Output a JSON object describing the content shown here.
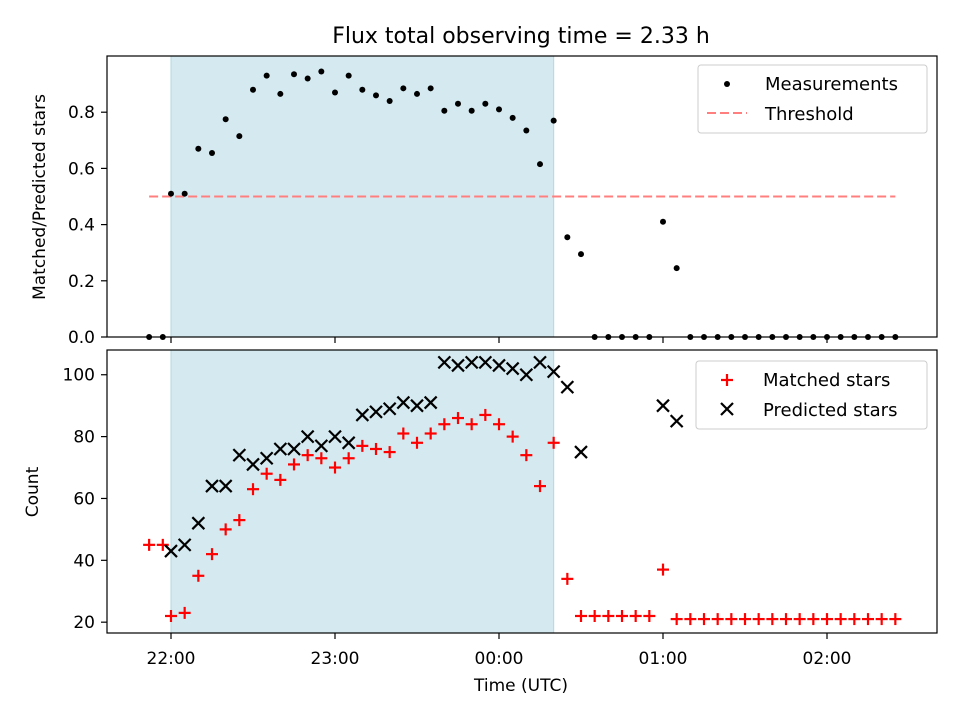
{
  "chart_data": [
    {
      "type": "scatter",
      "title": "Flux total observing time = 2.33 h",
      "xlabel": "",
      "ylabel": "Matched/Predicted stars",
      "ylim": [
        0,
        1.0
      ],
      "yticks": [
        0.0,
        0.2,
        0.4,
        0.6,
        0.8
      ],
      "ytick_labels": [
        "0.0",
        "0.2",
        "0.4",
        "0.6",
        "0.8"
      ],
      "xlim": [
        "21:46",
        "02:41"
      ],
      "grid": false,
      "legend_position": "upper right",
      "shaded_interval": {
        "start": "22:00",
        "end": "00:20",
        "color": "#d4eaf0"
      },
      "series": [
        {
          "name": "Measurements",
          "marker": "dot",
          "color": "#000000",
          "x": [
            "21:52",
            "21:57",
            "22:00",
            "22:05",
            "22:10",
            "22:15",
            "22:20",
            "22:25",
            "22:30",
            "22:35",
            "22:40",
            "22:45",
            "22:50",
            "22:55",
            "23:00",
            "23:05",
            "23:10",
            "23:15",
            "23:20",
            "23:25",
            "23:30",
            "23:35",
            "23:40",
            "23:45",
            "23:50",
            "23:55",
            "00:00",
            "00:05",
            "00:10",
            "00:15",
            "00:20",
            "00:25",
            "00:30",
            "00:35",
            "00:40",
            "00:45",
            "00:50",
            "00:55",
            "01:00",
            "01:05",
            "01:10",
            "01:15",
            "01:20",
            "01:25",
            "01:30",
            "01:35",
            "01:40",
            "01:45",
            "01:50",
            "01:55",
            "02:00",
            "02:05",
            "02:10",
            "02:15",
            "02:20",
            "02:25"
          ],
          "y": [
            0.0,
            0.0,
            0.51,
            0.51,
            0.67,
            0.655,
            0.775,
            0.715,
            0.88,
            0.93,
            0.865,
            0.935,
            0.92,
            0.945,
            0.87,
            0.93,
            0.88,
            0.86,
            0.84,
            0.885,
            0.865,
            0.885,
            0.805,
            0.83,
            0.805,
            0.83,
            0.81,
            0.78,
            0.735,
            0.615,
            0.77,
            0.355,
            0.295,
            0.0,
            0.0,
            0.0,
            0.0,
            0.0,
            0.41,
            0.245,
            0.0,
            0.0,
            0.0,
            0.0,
            0.0,
            0.0,
            0.0,
            0.0,
            0.0,
            0.0,
            0.0,
            0.0,
            0.0,
            0.0,
            0.0,
            0.0
          ]
        },
        {
          "name": "Threshold",
          "style": "dashed-line",
          "color": "#ff7f7f",
          "x": [
            "21:52",
            "02:25"
          ],
          "y": [
            0.5,
            0.5
          ]
        }
      ]
    },
    {
      "type": "scatter",
      "title": "",
      "xlabel": "Time (UTC)",
      "ylabel": "Count",
      "ylim": [
        16.5,
        108
      ],
      "yticks": [
        20,
        40,
        60,
        80,
        100
      ],
      "ytick_labels": [
        "20",
        "40",
        "60",
        "80",
        "100"
      ],
      "xlim": [
        "21:46",
        "02:41"
      ],
      "xticks": [
        "22:00",
        "23:00",
        "00:00",
        "01:00",
        "02:00"
      ],
      "xtick_labels": [
        "22:00",
        "23:00",
        "00:00",
        "01:00",
        "02:00"
      ],
      "grid": false,
      "legend_position": "upper right",
      "shaded_interval": {
        "start": "22:00",
        "end": "00:20",
        "color": "#d4eaf0"
      },
      "series": [
        {
          "name": "Matched stars",
          "marker": "plus",
          "color": "#ff0000",
          "x": [
            "21:52",
            "21:57",
            "22:00",
            "22:05",
            "22:10",
            "22:15",
            "22:20",
            "22:25",
            "22:30",
            "22:35",
            "22:40",
            "22:45",
            "22:50",
            "22:55",
            "23:00",
            "23:05",
            "23:10",
            "23:15",
            "23:20",
            "23:25",
            "23:30",
            "23:35",
            "23:40",
            "23:45",
            "23:50",
            "23:55",
            "00:00",
            "00:05",
            "00:10",
            "00:15",
            "00:20",
            "00:25",
            "00:30",
            "00:35",
            "00:40",
            "00:45",
            "00:50",
            "00:55",
            "01:00",
            "01:05",
            "01:10",
            "01:15",
            "01:20",
            "01:25",
            "01:30",
            "01:35",
            "01:40",
            "01:45",
            "01:50",
            "01:55",
            "02:00",
            "02:05",
            "02:10",
            "02:15",
            "02:20",
            "02:25"
          ],
          "y": [
            45,
            45,
            22,
            23,
            35,
            42,
            50,
            53,
            63,
            68,
            66,
            71,
            74,
            73,
            70,
            73,
            77,
            76,
            75,
            81,
            78,
            81,
            84,
            86,
            84,
            87,
            84,
            80,
            74,
            64,
            78,
            34,
            22,
            22,
            22,
            22,
            22,
            22,
            37,
            21,
            21,
            21,
            21,
            21,
            21,
            21,
            21,
            21,
            21,
            21,
            21,
            21,
            21,
            21,
            21,
            21
          ]
        },
        {
          "name": "Predicted stars",
          "marker": "x",
          "color": "#000000",
          "x": [
            "22:00",
            "22:05",
            "22:10",
            "22:15",
            "22:20",
            "22:25",
            "22:30",
            "22:35",
            "22:40",
            "22:45",
            "22:50",
            "22:55",
            "23:00",
            "23:05",
            "23:10",
            "23:15",
            "23:20",
            "23:25",
            "23:30",
            "23:35",
            "23:40",
            "23:45",
            "23:50",
            "23:55",
            "00:00",
            "00:05",
            "00:10",
            "00:15",
            "00:20",
            "00:25",
            "00:30",
            "01:00",
            "01:05"
          ],
          "y": [
            43,
            45,
            52,
            64,
            64,
            74,
            71,
            73,
            76,
            76,
            80,
            77,
            80,
            78,
            87,
            88,
            89,
            91,
            90,
            91,
            104,
            103,
            104,
            104,
            103,
            102,
            100,
            104,
            101,
            96,
            75,
            90,
            85
          ]
        }
      ]
    }
  ]
}
